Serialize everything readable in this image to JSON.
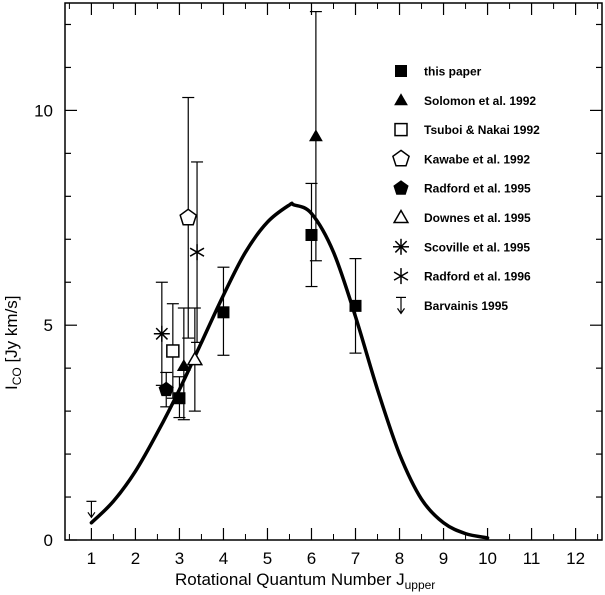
{
  "chart_data": {
    "type": "scatter",
    "xlabel": "Rotational Quantum Number J",
    "xlabel_sub": "upper",
    "ylabel": "I",
    "ylabel_sub": "CO",
    "ylabel_unit": " [Jy km/s]",
    "xlim": [
      0.4,
      12.6
    ],
    "ylim": [
      0,
      12.5
    ],
    "x_ticks": [
      1,
      2,
      3,
      4,
      5,
      6,
      7,
      8,
      9,
      10,
      11,
      12
    ],
    "y_ticks": [
      0,
      5,
      10
    ],
    "grid": false,
    "legend_position": "top-right",
    "series": [
      {
        "name": "this paper",
        "marker": "filled-square",
        "points": [
          {
            "x": 3,
            "y": 3.3,
            "lo": 2.85,
            "hi": 3.8
          },
          {
            "x": 4,
            "y": 5.3,
            "lo": 4.3,
            "hi": 6.35
          },
          {
            "x": 6,
            "y": 7.1,
            "lo": 5.9,
            "hi": 8.3
          },
          {
            "x": 7,
            "y": 5.45,
            "lo": 4.35,
            "hi": 6.55
          }
        ]
      },
      {
        "name": "Solomon et al. 1992",
        "marker": "filled-triangle",
        "points": [
          {
            "x": 3.1,
            "y": 4.05,
            "lo": 2.8,
            "hi": 5.4
          },
          {
            "x": 6.1,
            "y": 9.4,
            "lo": 6.5,
            "hi": 12.3
          }
        ]
      },
      {
        "name": "Tsuboi & Nakai 1992",
        "marker": "open-square",
        "points": [
          {
            "x": 2.85,
            "y": 4.4,
            "lo": 3.3,
            "hi": 5.5
          }
        ]
      },
      {
        "name": "Kawabe et al. 1992",
        "marker": "open-pentagon",
        "points": [
          {
            "x": 3.2,
            "y": 7.5,
            "lo": 4.7,
            "hi": 10.3
          }
        ]
      },
      {
        "name": "Radford et al. 1995",
        "marker": "filled-pentagon",
        "points": [
          {
            "x": 2.7,
            "y": 3.5,
            "lo": 3.1,
            "hi": 3.9
          }
        ]
      },
      {
        "name": "Downes et al. 1995",
        "marker": "open-triangle",
        "points": [
          {
            "x": 3.35,
            "y": 4.2,
            "lo": 3.0,
            "hi": 5.4
          }
        ]
      },
      {
        "name": "Scoville et al. 1995",
        "marker": "asterisk",
        "points": [
          {
            "x": 2.6,
            "y": 4.8,
            "lo": 3.6,
            "hi": 6.0
          }
        ]
      },
      {
        "name": "Radford et al. 1996",
        "marker": "cross-star",
        "points": [
          {
            "x": 3.4,
            "y": 6.7,
            "lo": 4.6,
            "hi": 8.8
          }
        ]
      },
      {
        "name": "Barvainis 1995",
        "marker": "upper-limit-arrow",
        "points": [
          {
            "x": 1,
            "y": 0.9
          }
        ]
      }
    ],
    "model_curve": {
      "type": "line",
      "x": [
        1,
        1.5,
        2,
        2.5,
        3,
        3.5,
        4,
        4.5,
        5,
        5.5,
        5.6,
        6,
        6.5,
        7,
        7.5,
        8,
        8.5,
        9,
        9.5,
        10
      ],
      "y": [
        0.4,
        0.9,
        1.6,
        2.5,
        3.5,
        4.6,
        5.7,
        6.7,
        7.4,
        7.8,
        7.8,
        7.6,
        6.7,
        5.2,
        3.5,
        2.0,
        0.95,
        0.4,
        0.15,
        0.05
      ]
    }
  }
}
